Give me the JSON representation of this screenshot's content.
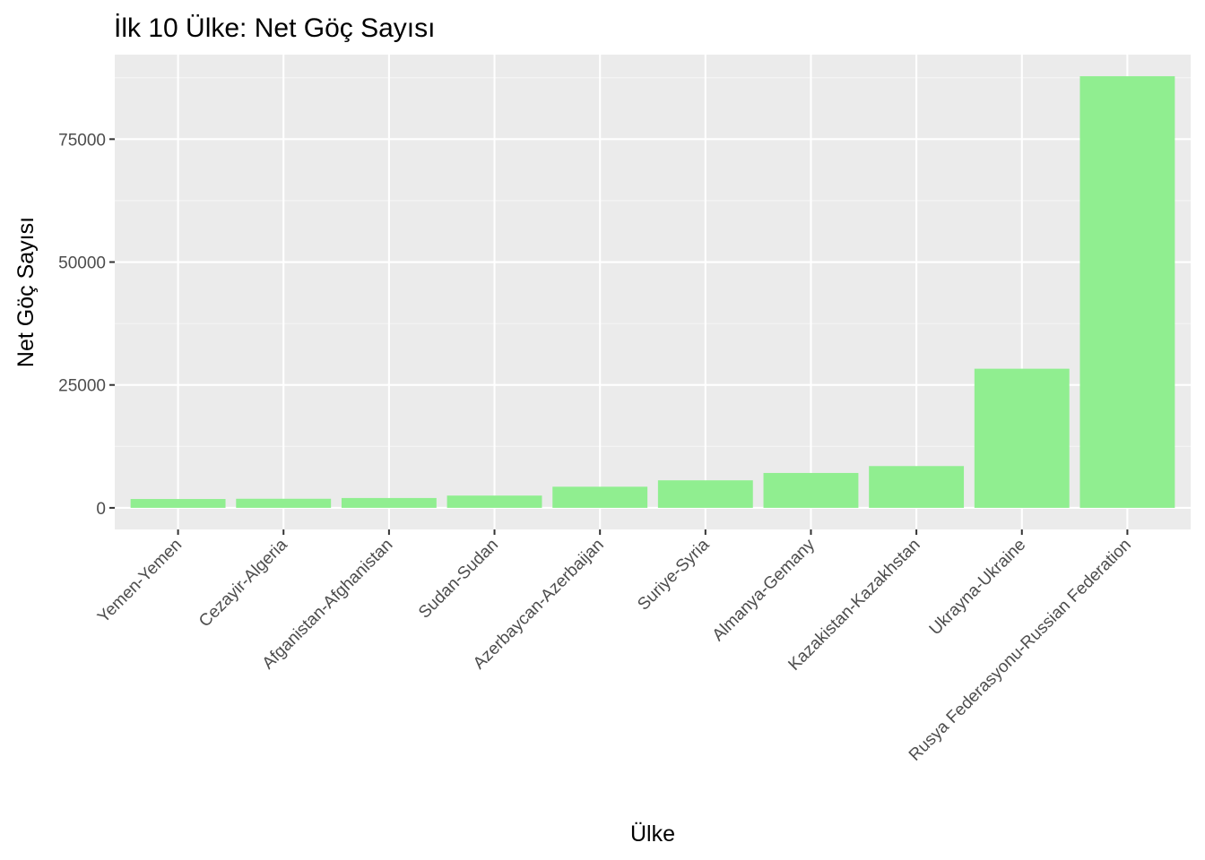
{
  "chart_data": {
    "type": "bar",
    "title": "İlk 10 Ülke: Net Göç Sayısı",
    "xlabel": "Ülke",
    "ylabel": "Net Göç Sayısı",
    "categories": [
      "Yemen-Yemen",
      "Cezayir-Algeria",
      "Afganistan-Afghanistan",
      "Sudan-Sudan",
      "Azerbaycan-Azerbaijan",
      "Suriye-Syria",
      "Almanya-Gemany",
      "Kazakistan-Kazakhstan",
      "Ukrayna-Ukraine",
      "Rusya Federasyonu-Russian Federation"
    ],
    "values": [
      1800,
      1850,
      2000,
      2500,
      4300,
      5600,
      7100,
      8500,
      28300,
      87800
    ],
    "yticks": [
      0,
      25000,
      50000,
      75000
    ],
    "ytick_labels": [
      "0",
      "25000",
      "50000",
      "75000"
    ],
    "ylim": [
      -4390,
      92190
    ],
    "grid": true,
    "legend": "none",
    "colors": {
      "bar": "#90ee90",
      "panel": "#ebebeb",
      "grid_major": "#ffffff",
      "grid_minor": "#f5f5f5",
      "tick": "#333333"
    }
  }
}
